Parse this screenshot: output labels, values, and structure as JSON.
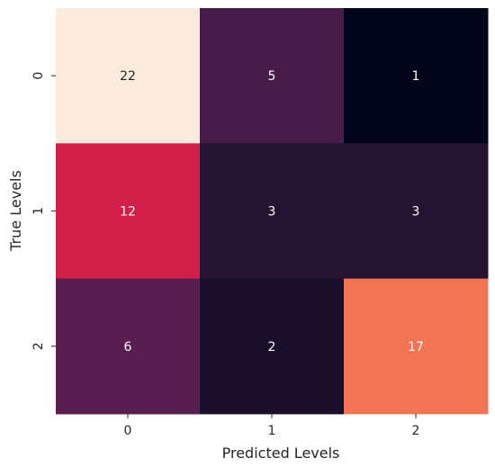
{
  "chart_data": {
    "type": "heatmap",
    "title": "",
    "xlabel": "Predicted Levels",
    "ylabel": "True Levels",
    "x_categories": [
      "0",
      "1",
      "2"
    ],
    "y_categories": [
      "0",
      "1",
      "2"
    ],
    "values": [
      [
        22,
        5,
        1
      ],
      [
        12,
        3,
        3
      ],
      [
        6,
        2,
        17
      ]
    ],
    "color_range": [
      1,
      22
    ],
    "colormap": "rocket",
    "colorbar": false,
    "grid": false,
    "annotated": true
  }
}
